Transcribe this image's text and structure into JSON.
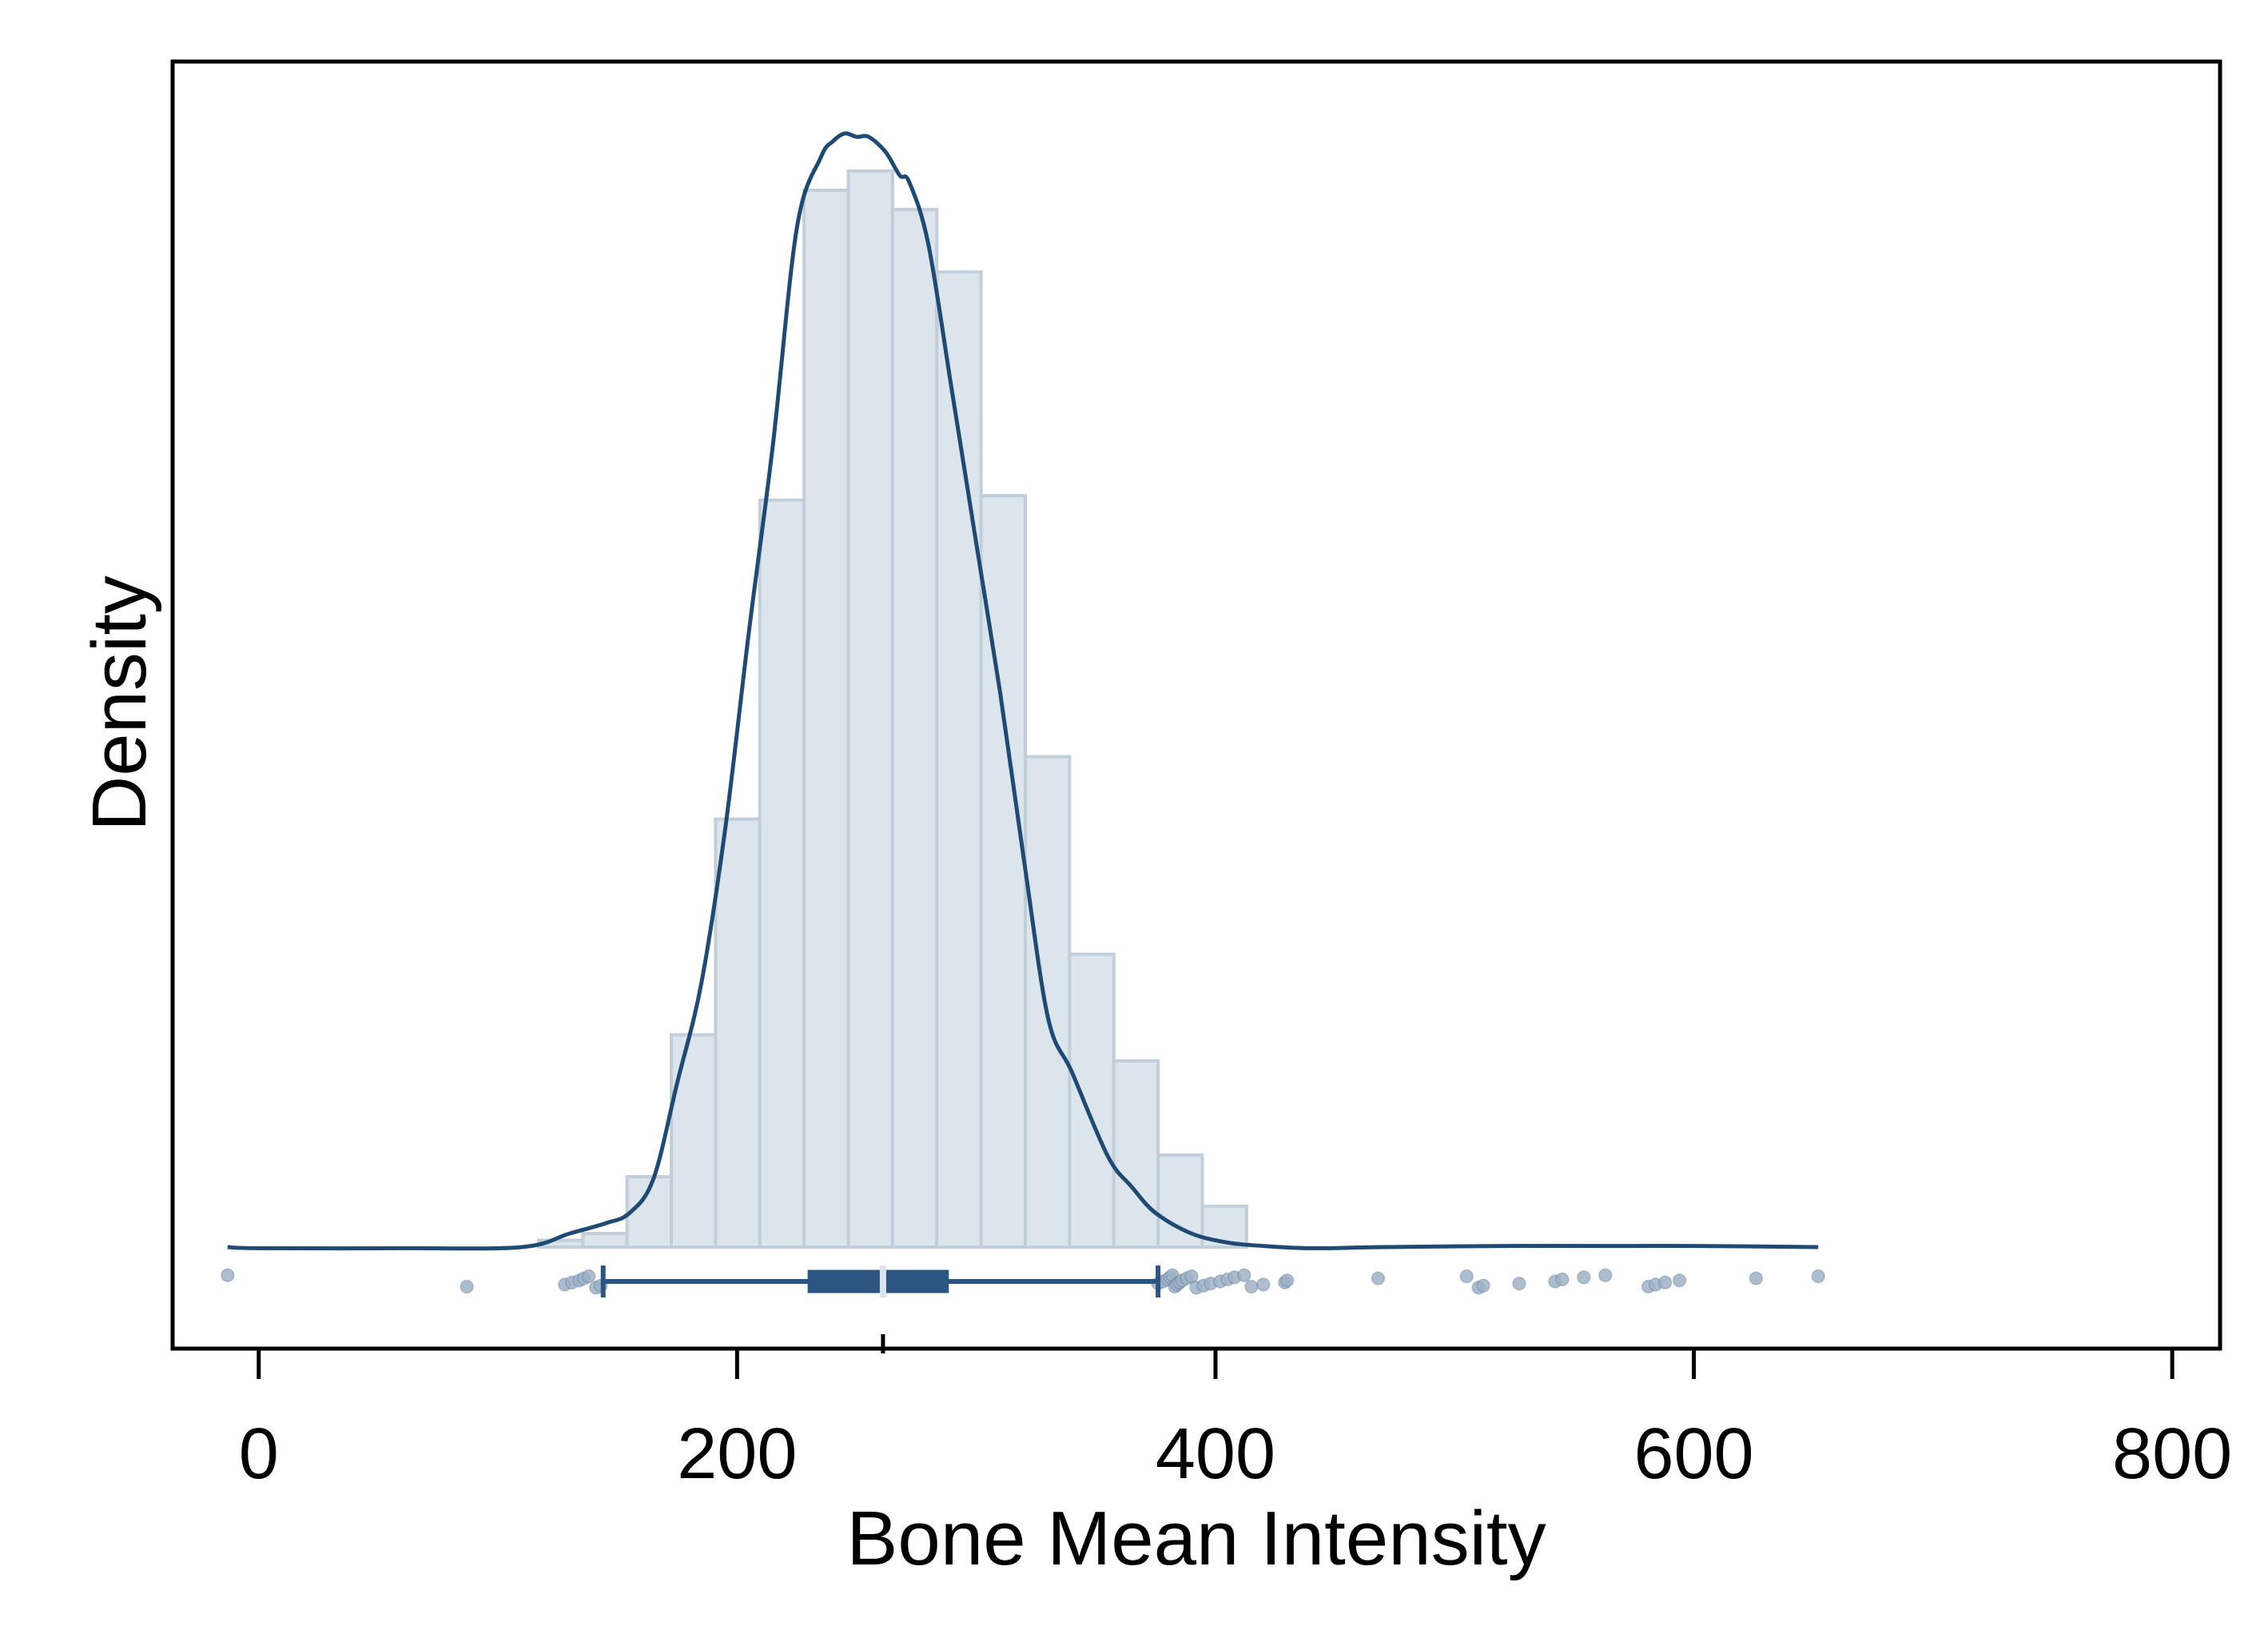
{
  "chart_data": {
    "type": "histogram",
    "title": "",
    "xlabel": "Bone Mean Intensity",
    "ylabel": "Density",
    "xlim": [
      -36,
      820
    ],
    "ylim": [
      0,
      1.0
    ],
    "x_ticks": [
      0,
      200,
      400,
      600,
      800
    ],
    "x_tick_labels": [
      "0",
      "200",
      "400",
      "600",
      "800"
    ],
    "y_ticks_shown": false,
    "grid": false,
    "legend": "none",
    "colors": {
      "bar_fill": "#dce4ec",
      "bar_edge": "#c2ceda",
      "line": "#1f4a73",
      "box": "#2c5582",
      "points": "#9fb1c4",
      "median": "#dce4ec"
    },
    "histogram": {
      "bin_edges": [
        117,
        135.5,
        154,
        172.5,
        191,
        209.5,
        228,
        246.5,
        265,
        283.5,
        302,
        320.5,
        339,
        357.5,
        376,
        394.5,
        413
      ],
      "density": [
        0.006,
        0.012,
        0.062,
        0.187,
        0.377,
        0.658,
        0.931,
        0.948,
        0.914,
        0.859,
        0.662,
        0.432,
        0.258,
        0.164,
        0.081,
        0.036
      ]
    },
    "kde": {
      "x": [
        -13,
        0,
        60,
        110,
        130,
        145,
        155,
        165,
        175,
        185,
        195,
        205,
        215,
        225,
        235,
        240,
        245,
        250,
        255,
        262,
        268,
        272,
        280,
        290,
        300,
        310,
        320,
        330,
        340,
        355,
        365,
        375,
        390,
        405,
        420,
        440,
        470,
        520,
        570,
        600,
        652
      ],
      "density": [
        0.0,
        -0.001,
        -0.001,
        0.0,
        0.012,
        0.021,
        0.03,
        0.06,
        0.145,
        0.232,
        0.368,
        0.543,
        0.707,
        0.898,
        0.96,
        0.974,
        0.981,
        0.978,
        0.978,
        0.965,
        0.944,
        0.938,
        0.883,
        0.752,
        0.62,
        0.488,
        0.34,
        0.202,
        0.154,
        0.08,
        0.053,
        0.03,
        0.012,
        0.004,
        0.001,
        -0.001,
        0.0,
        0.001,
        0.001,
        0.001,
        0.0
      ]
    },
    "boxplot": {
      "whisker_low": 144,
      "q1": 230,
      "median": 261,
      "q3": 288,
      "whisker_high": 376,
      "outliers": [
        -13,
        87,
        128,
        131,
        134,
        136,
        138,
        141,
        143,
        376,
        378,
        380,
        381,
        382,
        383,
        384,
        385,
        386,
        388,
        390,
        392,
        395,
        398,
        402,
        405,
        408,
        412,
        415,
        420,
        429,
        430,
        468,
        505,
        510,
        512,
        527,
        542,
        545,
        554,
        563,
        581,
        584,
        588,
        594,
        626,
        652
      ]
    }
  }
}
